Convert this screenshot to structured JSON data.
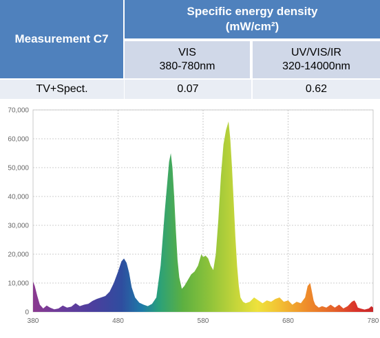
{
  "table": {
    "measurement_header": "Measurement C7",
    "density_header_line1": "Specific energy density",
    "density_header_line2": "(mW/cm²)",
    "vis_header_line1": "VIS",
    "vis_header_line2": "380-780nm",
    "uv_header_line1": "UV/VIS/IR",
    "uv_header_line2": "320-14000nm",
    "row_label": "TV+Spect.",
    "vis_value": "0.07",
    "uv_value": "0.62"
  },
  "chart_data": {
    "type": "area",
    "title": "",
    "xlabel": "",
    "ylabel": "",
    "xlim": [
      380,
      780
    ],
    "ylim": [
      0,
      70000
    ],
    "x_ticks": [
      380,
      480,
      580,
      680,
      780
    ],
    "y_ticks": [
      0,
      10000,
      20000,
      30000,
      40000,
      50000,
      60000,
      70000
    ],
    "y_tick_labels": [
      "0",
      "10,000",
      "20,000",
      "30,000",
      "40,000",
      "50,000",
      "60,000",
      "70,000"
    ],
    "grid": true,
    "fill": "spectral-gradient",
    "series": [
      {
        "x": [
          380,
          382,
          385,
          388,
          392,
          396,
          400,
          405,
          410,
          415,
          420,
          425,
          430,
          435,
          440,
          445,
          450,
          455,
          460,
          465,
          470,
          475,
          480,
          484,
          487,
          490,
          493,
          496,
          500,
          505,
          510,
          515,
          520,
          525,
          530,
          535,
          540,
          542,
          544,
          546,
          548,
          550,
          552,
          555,
          558,
          562,
          566,
          570,
          574,
          578,
          580,
          583,
          586,
          589,
          592,
          595,
          598,
          601,
          604,
          607,
          610,
          612,
          614,
          616,
          618,
          620,
          622,
          624,
          627,
          630,
          635,
          640,
          645,
          650,
          655,
          660,
          665,
          670,
          675,
          680,
          685,
          690,
          695,
          700,
          703,
          706,
          708,
          710,
          712,
          714,
          716,
          720,
          725,
          730,
          735,
          740,
          745,
          750,
          755,
          758,
          760,
          762,
          765,
          770,
          775,
          778,
          780
        ],
        "y": [
          10500,
          9000,
          5500,
          2500,
          1200,
          2200,
          1500,
          900,
          1200,
          2200,
          1500,
          1800,
          3000,
          2000,
          2500,
          2800,
          3800,
          4500,
          5000,
          5500,
          7000,
          10000,
          14000,
          17500,
          18500,
          17000,
          13500,
          8500,
          5000,
          3200,
          2500,
          2000,
          2800,
          5000,
          16000,
          35000,
          52000,
          55000,
          50000,
          40000,
          28000,
          18000,
          12000,
          8000,
          9000,
          11000,
          13000,
          14000,
          16000,
          20000,
          19000,
          19500,
          18500,
          16000,
          14500,
          20000,
          32000,
          47000,
          58000,
          63000,
          66000,
          60000,
          50000,
          38000,
          26000,
          16000,
          9000,
          5000,
          3500,
          3000,
          3500,
          5000,
          4000,
          3000,
          4000,
          3500,
          4500,
          5000,
          3500,
          4000,
          2500,
          3500,
          3000,
          5000,
          9000,
          10000,
          7000,
          4000,
          2500,
          2000,
          1500,
          2000,
          1500,
          2500,
          1500,
          2500,
          1200,
          2000,
          3500,
          4000,
          3000,
          1500,
          1200,
          800,
          1200,
          2000,
          1500
        ]
      }
    ]
  }
}
